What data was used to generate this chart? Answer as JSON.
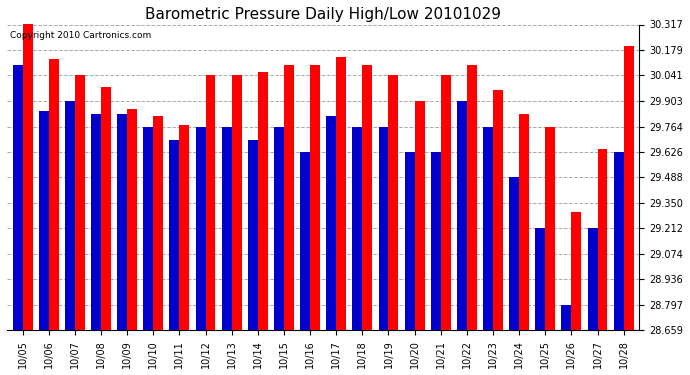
{
  "title": "Barometric Pressure Daily High/Low 20101029",
  "copyright": "Copyright 2010 Cartronics.com",
  "dates": [
    "10/05",
    "10/06",
    "10/07",
    "10/08",
    "10/09",
    "10/10",
    "10/11",
    "10/12",
    "10/13",
    "10/14",
    "10/15",
    "10/16",
    "10/17",
    "10/18",
    "10/19",
    "10/20",
    "10/21",
    "10/22",
    "10/23",
    "10/24",
    "10/25",
    "10/26",
    "10/27",
    "10/28"
  ],
  "highs": [
    30.317,
    30.13,
    30.041,
    29.98,
    29.86,
    29.82,
    29.77,
    30.041,
    30.041,
    30.06,
    30.095,
    30.095,
    30.14,
    30.095,
    30.041,
    29.9,
    30.041,
    30.1,
    29.96,
    29.83,
    29.764,
    29.3,
    29.64,
    30.2
  ],
  "lows": [
    30.1,
    29.85,
    29.903,
    29.83,
    29.83,
    29.764,
    29.69,
    29.764,
    29.764,
    29.69,
    29.764,
    29.626,
    29.82,
    29.764,
    29.764,
    29.626,
    29.626,
    29.903,
    29.764,
    29.488,
    29.212,
    28.797,
    29.212,
    29.626
  ],
  "high_color": "#FF0000",
  "low_color": "#0000CC",
  "background_color": "#FFFFFF",
  "yticks": [
    28.659,
    28.797,
    28.936,
    29.074,
    29.212,
    29.35,
    29.488,
    29.626,
    29.764,
    29.903,
    30.041,
    30.179,
    30.317
  ],
  "ymin": 28.659,
  "ymax": 30.317,
  "bar_width": 0.38,
  "grid_color": "#AAAAAA",
  "title_fontsize": 11,
  "tick_fontsize": 7,
  "copyright_fontsize": 6.5
}
